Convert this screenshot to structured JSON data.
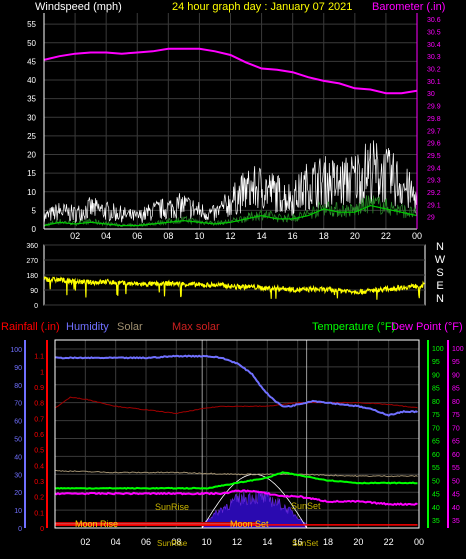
{
  "header": {
    "left_label": "Windspeed (mph)",
    "title": "24 hour graph day : January 07 2021",
    "right_label": "Barometer (.in)"
  },
  "colors": {
    "background": "#000000",
    "frame": "#ffffff",
    "grid": "#3a3a3a",
    "title": "#ffff00",
    "barometer": "#ff00ff",
    "wind_gust": "#ffffff",
    "wind_avg": "#00cc00",
    "direction": "#ffff00",
    "rainfall": "#ff0000",
    "humidity": "#7070ff",
    "solar": "#a09070",
    "max_solar": "#a00000",
    "temperature": "#00ff00",
    "dew_point": "#ff00ff",
    "sun_band": "#2a0ab0",
    "sun_label": "#c8b400",
    "moon_label": "#ffd000"
  },
  "chart_data": [
    {
      "type": "line",
      "name": "wind-barometer",
      "x_ticks": [
        "02",
        "04",
        "06",
        "08",
        "10",
        "12",
        "14",
        "16",
        "18",
        "20",
        "22",
        "00"
      ],
      "y_left_ticks": [
        "0",
        "5",
        "10",
        "15",
        "20",
        "25",
        "30",
        "35",
        "40",
        "45",
        "50",
        "55"
      ],
      "y_left_range": [
        0,
        58
      ],
      "y_right_ticks": [
        "29",
        "29.1",
        "29.2",
        "29.3",
        "29.4",
        "29.5",
        "29.6",
        "29.7",
        "29.8",
        "29.9",
        "30",
        "30.1",
        "30.2",
        "30.3",
        "30.4",
        "30.5",
        "30.6"
      ],
      "y_right_range": [
        28.9,
        30.65
      ],
      "series": [
        {
          "name": "Barometer",
          "color": "#ff00ff",
          "x": [
            0,
            1,
            2,
            3,
            4,
            5,
            6,
            7,
            8,
            9,
            10,
            11,
            12,
            13,
            14,
            15,
            16,
            17,
            18,
            19,
            20,
            21,
            22,
            23,
            24
          ],
          "values": [
            30.27,
            30.3,
            30.32,
            30.33,
            30.33,
            30.32,
            30.33,
            30.34,
            30.36,
            30.36,
            30.36,
            30.34,
            30.31,
            30.25,
            30.2,
            30.19,
            30.17,
            30.13,
            30.1,
            30.08,
            30.04,
            30.03,
            30.0,
            30.0,
            30.02
          ]
        },
        {
          "name": "Wind gust",
          "color": "#ffffff",
          "x": [
            0,
            1,
            2,
            3,
            4,
            5,
            6,
            7,
            8,
            9,
            10,
            11,
            12,
            13,
            14,
            15,
            16,
            17,
            18,
            19,
            20,
            21,
            22,
            23,
            24
          ],
          "values": [
            4,
            6,
            5,
            7,
            6,
            5,
            4,
            6,
            7,
            8,
            6,
            5,
            9,
            13,
            14,
            12,
            10,
            15,
            16,
            15,
            17,
            20,
            18,
            15,
            10
          ]
        },
        {
          "name": "Wind average",
          "color": "#00cc00",
          "x": [
            0,
            1,
            2,
            3,
            4,
            5,
            6,
            7,
            8,
            9,
            10,
            11,
            12,
            13,
            14,
            15,
            16,
            17,
            18,
            19,
            20,
            21,
            22,
            23,
            24
          ],
          "values": [
            1,
            2,
            1.5,
            2,
            1.5,
            1,
            1,
            1.5,
            2,
            2.5,
            2,
            1.5,
            2,
            3,
            4,
            3,
            3,
            4,
            6,
            5,
            5,
            7,
            6,
            5,
            4
          ]
        }
      ]
    },
    {
      "type": "line",
      "name": "wind-direction",
      "x_ticks": [
        "02",
        "04",
        "06",
        "08",
        "10",
        "12",
        "14",
        "16",
        "18",
        "20",
        "22",
        "00"
      ],
      "y_ticks": [
        "0",
        "90",
        "180",
        "270",
        "360"
      ],
      "y_range": [
        0,
        360
      ],
      "compass_labels": [
        "N",
        "W",
        "S",
        "E",
        "N"
      ],
      "series": [
        {
          "name": "Direction",
          "color": "#ffff00",
          "x": [
            0,
            1,
            2,
            3,
            4,
            5,
            6,
            7,
            8,
            9,
            10,
            11,
            12,
            13,
            14,
            15,
            16,
            17,
            18,
            19,
            20,
            21,
            22,
            23,
            24
          ],
          "values": [
            155,
            150,
            140,
            135,
            140,
            130,
            125,
            125,
            130,
            125,
            120,
            120,
            110,
            110,
            100,
            100,
            90,
            95,
            90,
            85,
            80,
            90,
            100,
            110,
            120
          ]
        }
      ]
    },
    {
      "type": "line",
      "name": "rain-humidity-temperature",
      "legend": [
        "Rainfall (.in)",
        "Humidity",
        "Solar",
        "Max solar",
        "Temperature (°F)",
        "Dew Point (°F)"
      ],
      "x_ticks": [
        "02",
        "04",
        "06",
        "08",
        "10",
        "12",
        "14",
        "16",
        "18",
        "20",
        "22",
        "00"
      ],
      "y_rain_ticks": [
        "0",
        "0.1",
        "0.2",
        "0.3",
        "0.4",
        "0.5",
        "0.6",
        "0.7",
        "0.8",
        "0.9",
        "1",
        "1.1"
      ],
      "y_rain_range": [
        0,
        1.2
      ],
      "y_humidity_ticks": [
        "0",
        "10",
        "20",
        "30",
        "40",
        "50",
        "60",
        "70",
        "80",
        "90",
        "100"
      ],
      "y_humidity_range": [
        0,
        105
      ],
      "y_temp_ticks": [
        "35",
        "40",
        "45",
        "50",
        "55",
        "60",
        "65",
        "70",
        "75",
        "80",
        "85",
        "90",
        "95",
        "100"
      ],
      "y_temp_range": [
        32,
        103
      ],
      "y_dew_ticks": [
        "35",
        "40",
        "45",
        "50",
        "55",
        "60",
        "65",
        "70",
        "75",
        "80",
        "85",
        "90",
        "95",
        "100"
      ],
      "annotations": [
        "Moon Rise",
        "SunRise",
        "SunRise",
        "SunSet",
        "Moon Set",
        "SunSet"
      ],
      "series": [
        {
          "name": "Humidity",
          "color": "#7070ff",
          "x": [
            0,
            2,
            4,
            6,
            8,
            10,
            11,
            12,
            13,
            13.5,
            14,
            14.5,
            15,
            15.5,
            16,
            17,
            18,
            19,
            20,
            21,
            22,
            23,
            24
          ],
          "values": [
            95,
            95,
            95,
            95,
            96,
            96,
            95,
            92,
            86,
            80,
            75,
            71,
            68,
            68,
            69,
            71,
            70,
            69,
            68,
            66,
            63,
            65,
            65
          ]
        },
        {
          "name": "Max solar",
          "color": "#a00000",
          "x": [
            0,
            1,
            2,
            4,
            6,
            8,
            10,
            11,
            12,
            14,
            16,
            18,
            20,
            22,
            24
          ],
          "values": [
            67,
            73,
            72,
            68,
            66,
            64,
            67,
            68,
            68,
            68,
            70,
            70,
            70,
            69,
            67
          ]
        },
        {
          "name": "Solar",
          "color": "#a09070",
          "x": [
            0,
            4,
            8,
            12,
            16,
            20,
            24
          ],
          "values": [
            32,
            31,
            31,
            30,
            30,
            29,
            29
          ]
        },
        {
          "name": "Temperature",
          "color": "#00ff00",
          "x": [
            0,
            2,
            4,
            6,
            8,
            10,
            11,
            12,
            13,
            14,
            15,
            16,
            17,
            18,
            20,
            22,
            24
          ],
          "values": [
            47,
            47,
            47,
            47,
            47,
            47,
            48,
            49,
            50,
            51,
            53,
            52,
            51,
            50,
            49,
            49,
            49
          ]
        },
        {
          "name": "Dew Point",
          "color": "#ff00ff",
          "x": [
            0,
            2,
            4,
            6,
            8,
            10,
            11,
            12,
            13,
            14,
            15,
            16,
            17,
            18,
            20,
            22,
            24
          ],
          "values": [
            45,
            45,
            45,
            45,
            45,
            45,
            45,
            46,
            46,
            45,
            44,
            44,
            43,
            42,
            42,
            41,
            41
          ]
        },
        {
          "name": "Rainfall",
          "color": "#ff0000",
          "x": [
            0,
            24
          ],
          "values": [
            0.02,
            0.02
          ]
        }
      ]
    }
  ]
}
